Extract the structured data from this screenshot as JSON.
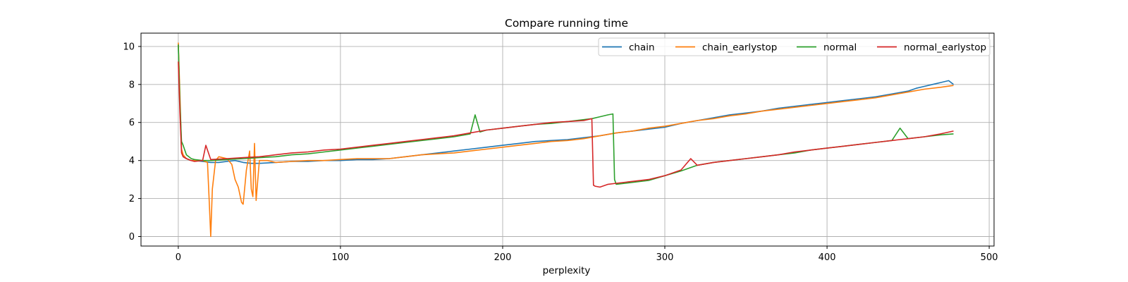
{
  "chart_data": {
    "type": "line",
    "title": "Compare running time",
    "xlabel": "perplexity",
    "ylabel": "",
    "xlim": [
      -23,
      503
    ],
    "ylim": [
      -0.5,
      10.7
    ],
    "xticks": [
      0,
      100,
      200,
      300,
      400,
      500
    ],
    "yticks": [
      0,
      2,
      4,
      6,
      8,
      10
    ],
    "grid": true,
    "legend_position": "top-right",
    "series": [
      {
        "name": "chain",
        "color": "#1f77b4",
        "x": [
          0,
          1,
          2,
          3,
          5,
          8,
          10,
          15,
          20,
          25,
          30,
          35,
          40,
          45,
          50,
          60,
          70,
          80,
          90,
          100,
          110,
          120,
          130,
          140,
          150,
          160,
          170,
          180,
          190,
          200,
          210,
          220,
          230,
          240,
          250,
          260,
          270,
          280,
          290,
          300,
          310,
          320,
          330,
          340,
          350,
          360,
          370,
          380,
          390,
          400,
          410,
          420,
          430,
          440,
          450,
          455,
          460,
          465,
          470,
          475,
          478
        ],
        "y": [
          10.1,
          7.0,
          4.5,
          4.2,
          4.1,
          4.0,
          4.0,
          3.95,
          3.9,
          3.9,
          3.95,
          4.0,
          3.9,
          3.85,
          3.85,
          3.9,
          3.95,
          3.95,
          4.0,
          4.0,
          4.05,
          4.05,
          4.1,
          4.2,
          4.3,
          4.4,
          4.5,
          4.6,
          4.7,
          4.8,
          4.9,
          5.0,
          5.05,
          5.1,
          5.2,
          5.3,
          5.45,
          5.55,
          5.65,
          5.75,
          5.95,
          6.1,
          6.25,
          6.4,
          6.5,
          6.6,
          6.75,
          6.85,
          6.95,
          7.05,
          7.15,
          7.25,
          7.35,
          7.5,
          7.65,
          7.8,
          7.9,
          8.0,
          8.1,
          8.2,
          8.0
        ]
      },
      {
        "name": "chain_earlystop",
        "color": "#ff7f0e",
        "x": [
          0,
          1,
          2,
          3,
          5,
          8,
          10,
          15,
          18,
          19,
          20,
          21,
          23,
          25,
          30,
          33,
          35,
          37,
          38,
          39,
          40,
          42,
          44,
          45,
          46,
          47,
          48,
          50,
          55,
          60,
          70,
          80,
          90,
          100,
          110,
          120,
          130,
          140,
          150,
          160,
          170,
          180,
          190,
          200,
          210,
          220,
          230,
          240,
          250,
          260,
          270,
          280,
          290,
          300,
          310,
          320,
          330,
          340,
          350,
          360,
          370,
          380,
          390,
          400,
          410,
          420,
          430,
          440,
          450,
          460,
          470,
          478
        ],
        "y": [
          10.2,
          7.5,
          4.6,
          4.3,
          4.1,
          4.0,
          4.0,
          4.0,
          3.9,
          2.0,
          0.0,
          2.5,
          4.0,
          4.2,
          4.1,
          3.8,
          3.0,
          2.6,
          2.2,
          1.8,
          1.7,
          3.5,
          4.5,
          2.5,
          2.1,
          4.9,
          1.9,
          4.0,
          4.0,
          3.9,
          3.95,
          4.0,
          4.0,
          4.05,
          4.1,
          4.1,
          4.1,
          4.2,
          4.3,
          4.35,
          4.4,
          4.5,
          4.6,
          4.7,
          4.8,
          4.9,
          5.0,
          5.05,
          5.15,
          5.3,
          5.45,
          5.55,
          5.7,
          5.8,
          5.95,
          6.1,
          6.2,
          6.35,
          6.45,
          6.6,
          6.7,
          6.8,
          6.9,
          7.0,
          7.1,
          7.2,
          7.3,
          7.45,
          7.6,
          7.75,
          7.85,
          7.95
        ]
      },
      {
        "name": "normal",
        "color": "#2ca02c",
        "x": [
          0,
          1,
          2,
          3,
          5,
          8,
          10,
          15,
          20,
          30,
          40,
          50,
          60,
          70,
          80,
          90,
          100,
          110,
          120,
          130,
          140,
          150,
          160,
          170,
          180,
          183,
          186,
          190,
          200,
          210,
          220,
          230,
          240,
          250,
          255,
          260,
          265,
          268,
          269,
          270,
          280,
          290,
          300,
          310,
          320,
          330,
          340,
          350,
          360,
          370,
          380,
          390,
          400,
          410,
          420,
          430,
          440,
          445,
          450,
          460,
          470,
          478
        ],
        "y": [
          10.1,
          7.0,
          5.0,
          4.8,
          4.3,
          4.1,
          4.05,
          4.0,
          4.0,
          4.05,
          4.1,
          4.15,
          4.2,
          4.3,
          4.35,
          4.45,
          4.55,
          4.65,
          4.75,
          4.85,
          4.95,
          5.05,
          5.15,
          5.25,
          5.4,
          6.4,
          5.5,
          5.6,
          5.7,
          5.8,
          5.9,
          5.95,
          6.05,
          6.15,
          6.2,
          6.3,
          6.4,
          6.45,
          3.0,
          2.75,
          2.85,
          2.95,
          3.2,
          3.45,
          3.75,
          3.9,
          4.0,
          4.1,
          4.2,
          4.3,
          4.4,
          4.55,
          4.65,
          4.75,
          4.85,
          4.95,
          5.05,
          5.7,
          5.15,
          5.25,
          5.35,
          5.4
        ]
      },
      {
        "name": "normal_earlystop",
        "color": "#d62728",
        "x": [
          0,
          1,
          2,
          3,
          5,
          8,
          10,
          15,
          17,
          20,
          30,
          40,
          50,
          60,
          70,
          80,
          90,
          100,
          110,
          120,
          130,
          140,
          150,
          160,
          170,
          180,
          190,
          200,
          210,
          220,
          230,
          240,
          250,
          255,
          256,
          257,
          260,
          265,
          270,
          280,
          290,
          300,
          310,
          316,
          320,
          330,
          340,
          350,
          360,
          370,
          380,
          390,
          400,
          410,
          420,
          430,
          440,
          450,
          460,
          470,
          478
        ],
        "y": [
          9.2,
          6.5,
          4.4,
          4.2,
          4.1,
          4.0,
          3.95,
          4.0,
          4.8,
          4.05,
          4.1,
          4.15,
          4.2,
          4.3,
          4.4,
          4.45,
          4.55,
          4.6,
          4.7,
          4.8,
          4.9,
          5.0,
          5.1,
          5.2,
          5.3,
          5.45,
          5.6,
          5.7,
          5.8,
          5.9,
          6.0,
          6.05,
          6.1,
          6.2,
          2.7,
          2.65,
          2.6,
          2.75,
          2.8,
          2.9,
          3.0,
          3.2,
          3.5,
          4.1,
          3.75,
          3.9,
          4.0,
          4.1,
          4.2,
          4.3,
          4.45,
          4.55,
          4.65,
          4.75,
          4.85,
          4.95,
          5.05,
          5.15,
          5.25,
          5.4,
          5.55
        ]
      }
    ]
  }
}
